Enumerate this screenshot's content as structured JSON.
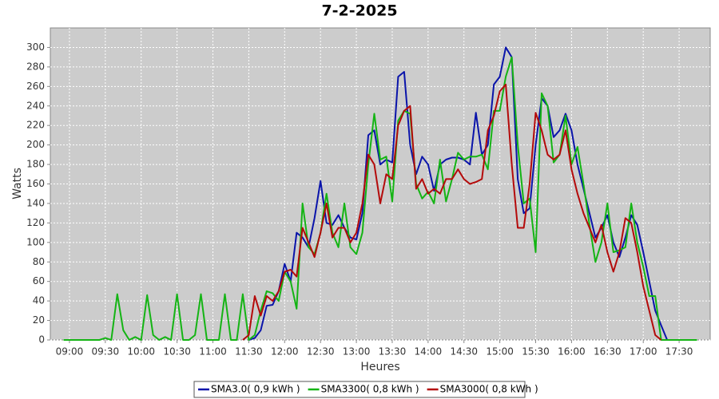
{
  "chart_data": {
    "type": "line",
    "title": "7-2-2025",
    "x_label": "Heures",
    "y_label": "Watts",
    "x": [
      535,
      540,
      545,
      550,
      555,
      560,
      565,
      570,
      575,
      580,
      585,
      590,
      595,
      600,
      605,
      610,
      615,
      620,
      625,
      630,
      635,
      640,
      645,
      650,
      655,
      660,
      665,
      670,
      675,
      680,
      685,
      690,
      695,
      700,
      705,
      710,
      715,
      720,
      725,
      730,
      735,
      740,
      745,
      750,
      755,
      760,
      765,
      770,
      775,
      780,
      785,
      790,
      795,
      800,
      805,
      810,
      815,
      820,
      825,
      830,
      835,
      840,
      845,
      850,
      855,
      860,
      865,
      870,
      875,
      880,
      885,
      890,
      895,
      900,
      905,
      910,
      915,
      920,
      925,
      930,
      935,
      940,
      945,
      950,
      955,
      960,
      965,
      970,
      975,
      980,
      985,
      990,
      995,
      1000,
      1005,
      1010,
      1015,
      1020,
      1025,
      1030,
      1035,
      1040,
      1045,
      1050,
      1055,
      1060,
      1065
    ],
    "series": [
      {
        "name": "SMA3.0( 0,9 kWh )",
        "color": "#0a14aa",
        "values": [
          null,
          null,
          null,
          null,
          null,
          null,
          null,
          null,
          null,
          null,
          null,
          null,
          null,
          null,
          null,
          null,
          null,
          null,
          null,
          null,
          null,
          null,
          null,
          null,
          null,
          null,
          null,
          null,
          null,
          null,
          null,
          0,
          2,
          10,
          35,
          36,
          50,
          78,
          60,
          110,
          105,
          95,
          125,
          163,
          120,
          118,
          128,
          115,
          105,
          103,
          130,
          210,
          215,
          180,
          185,
          182,
          270,
          275,
          200,
          170,
          188,
          180,
          153,
          180,
          185,
          187,
          187,
          185,
          180,
          233,
          190,
          200,
          262,
          270,
          300,
          290,
          165,
          130,
          135,
          200,
          248,
          240,
          208,
          215,
          232,
          215,
          180,
          155,
          130,
          105,
          115,
          128,
          100,
          85,
          105,
          128,
          118,
          90,
          60,
          30,
          15,
          0,
          null,
          null,
          null,
          null,
          null
        ]
      },
      {
        "name": "SMA3300( 0,8 kWh )",
        "color": "#14b414",
        "values": [
          0,
          0,
          0,
          0,
          0,
          0,
          0,
          2,
          0,
          47,
          10,
          0,
          3,
          0,
          46,
          5,
          0,
          3,
          0,
          47,
          0,
          0,
          5,
          47,
          0,
          0,
          0,
          47,
          0,
          0,
          47,
          0,
          5,
          30,
          50,
          48,
          40,
          70,
          60,
          32,
          140,
          95,
          88,
          110,
          150,
          110,
          95,
          140,
          95,
          88,
          110,
          180,
          232,
          185,
          188,
          142,
          225,
          235,
          232,
          160,
          145,
          152,
          140,
          185,
          142,
          165,
          192,
          185,
          188,
          188,
          190,
          175,
          235,
          235,
          270,
          290,
          200,
          140,
          145,
          90,
          253,
          240,
          182,
          190,
          230,
          180,
          198,
          160,
          118,
          80,
          100,
          140,
          90,
          92,
          95,
          140,
          100,
          75,
          45,
          45,
          0,
          0,
          0,
          0,
          0,
          0,
          0
        ]
      },
      {
        "name": "SMA3000( 0,8 kWh )",
        "color": "#b40a0a",
        "values": [
          null,
          null,
          null,
          null,
          null,
          null,
          null,
          null,
          null,
          null,
          null,
          null,
          null,
          null,
          null,
          null,
          null,
          null,
          null,
          null,
          null,
          null,
          null,
          null,
          null,
          null,
          null,
          null,
          null,
          null,
          0,
          5,
          45,
          25,
          45,
          40,
          50,
          70,
          72,
          65,
          115,
          100,
          85,
          110,
          140,
          105,
          115,
          115,
          100,
          110,
          140,
          190,
          180,
          140,
          170,
          165,
          220,
          235,
          240,
          155,
          165,
          150,
          155,
          150,
          165,
          165,
          175,
          165,
          160,
          162,
          165,
          215,
          230,
          255,
          262,
          180,
          115,
          115,
          160,
          233,
          215,
          190,
          185,
          190,
          215,
          175,
          150,
          130,
          115,
          100,
          118,
          90,
          70,
          90,
          125,
          120,
          90,
          55,
          30,
          5,
          0,
          null,
          null,
          null,
          null,
          null,
          null
        ]
      }
    ],
    "xlim": [
      524,
      1076
    ],
    "xticks": [
      {
        "value": 540,
        "label": "09:00"
      },
      {
        "value": 570,
        "label": "09:30"
      },
      {
        "value": 600,
        "label": "10:00"
      },
      {
        "value": 630,
        "label": "10:30"
      },
      {
        "value": 660,
        "label": "11:00"
      },
      {
        "value": 690,
        "label": "11:30"
      },
      {
        "value": 720,
        "label": "12:00"
      },
      {
        "value": 750,
        "label": "12:30"
      },
      {
        "value": 780,
        "label": "13:00"
      },
      {
        "value": 810,
        "label": "13:30"
      },
      {
        "value": 840,
        "label": "14:00"
      },
      {
        "value": 870,
        "label": "14:30"
      },
      {
        "value": 900,
        "label": "15:00"
      },
      {
        "value": 930,
        "label": "15:30"
      },
      {
        "value": 960,
        "label": "16:00"
      },
      {
        "value": 990,
        "label": "16:30"
      },
      {
        "value": 1020,
        "label": "17:00"
      },
      {
        "value": 1050,
        "label": "17:30"
      }
    ],
    "ylim": [
      0,
      320
    ],
    "yticks": [
      0,
      20,
      40,
      60,
      80,
      100,
      120,
      140,
      160,
      180,
      200,
      220,
      240,
      260,
      280,
      300
    ],
    "grid": true,
    "legend": "bottom"
  }
}
